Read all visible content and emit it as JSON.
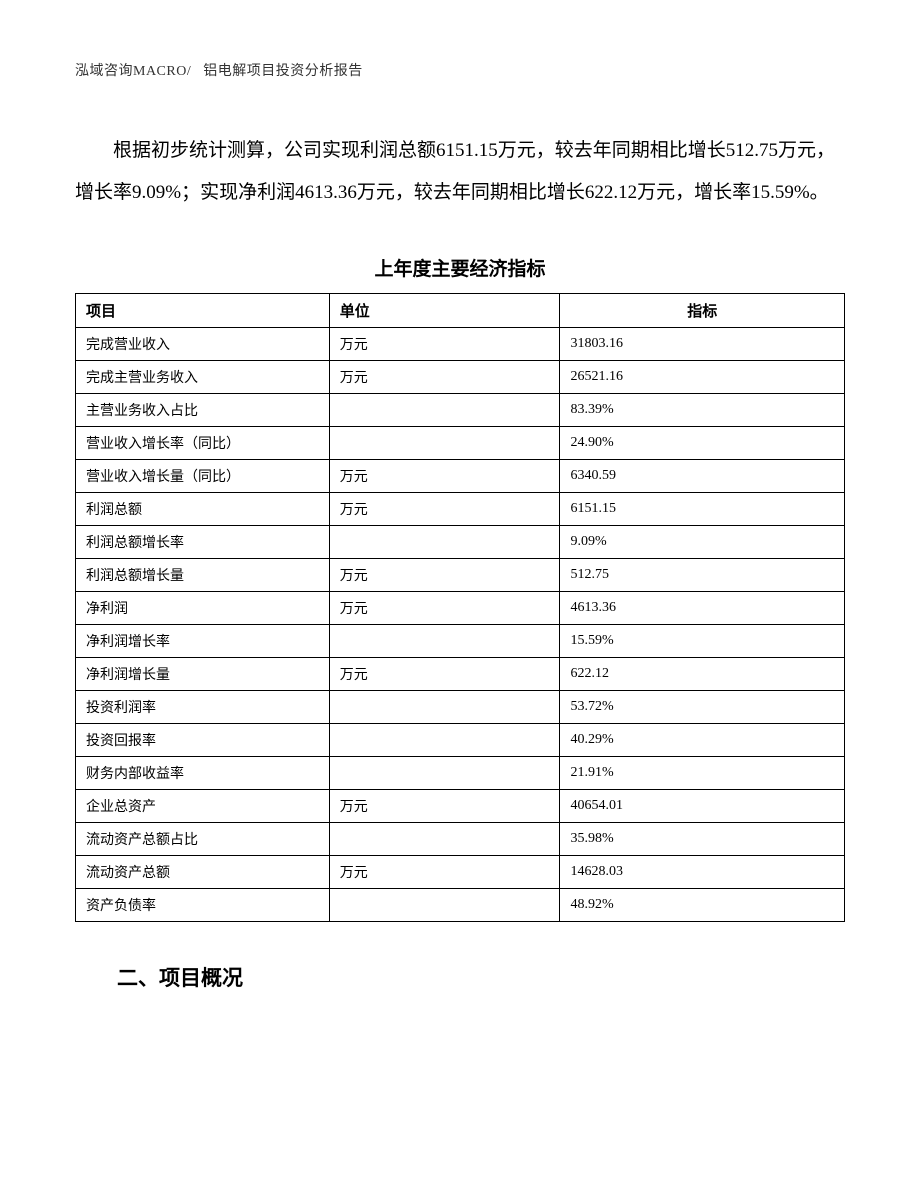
{
  "header": {
    "company": "泓域咨询MACRO/",
    "doc_title": "铝电解项目投资分析报告"
  },
  "paragraph": "根据初步统计测算，公司实现利润总额6151.15万元，较去年同期相比增长512.75万元，增长率9.09%；实现净利润4613.36万元，较去年同期相比增长622.12万元，增长率15.59%。",
  "table": {
    "title": "上年度主要经济指标",
    "columns": [
      "项目",
      "单位",
      "指标"
    ],
    "rows": [
      {
        "item": "完成营业收入",
        "unit": "万元",
        "value": "31803.16"
      },
      {
        "item": "完成主营业务收入",
        "unit": "万元",
        "value": "26521.16"
      },
      {
        "item": "主营业务收入占比",
        "unit": "",
        "value": "83.39%"
      },
      {
        "item": "营业收入增长率（同比）",
        "unit": "",
        "value": "24.90%"
      },
      {
        "item": "营业收入增长量（同比）",
        "unit": "万元",
        "value": "6340.59"
      },
      {
        "item": "利润总额",
        "unit": "万元",
        "value": "6151.15"
      },
      {
        "item": "利润总额增长率",
        "unit": "",
        "value": "9.09%"
      },
      {
        "item": "利润总额增长量",
        "unit": "万元",
        "value": "512.75"
      },
      {
        "item": "净利润",
        "unit": "万元",
        "value": "4613.36"
      },
      {
        "item": "净利润增长率",
        "unit": "",
        "value": "15.59%"
      },
      {
        "item": "净利润增长量",
        "unit": "万元",
        "value": "622.12"
      },
      {
        "item": "投资利润率",
        "unit": "",
        "value": "53.72%"
      },
      {
        "item": "投资回报率",
        "unit": "",
        "value": "40.29%"
      },
      {
        "item": "财务内部收益率",
        "unit": "",
        "value": "21.91%"
      },
      {
        "item": "企业总资产",
        "unit": "万元",
        "value": "40654.01"
      },
      {
        "item": "流动资产总额占比",
        "unit": "",
        "value": "35.98%"
      },
      {
        "item": "流动资产总额",
        "unit": "万元",
        "value": "14628.03"
      },
      {
        "item": "资产负债率",
        "unit": "",
        "value": "48.92%"
      }
    ]
  },
  "section_heading": "二、项目概况",
  "styling": {
    "background_color": "#ffffff",
    "text_color": "#000000",
    "header_color": "#333333",
    "border_color": "#000000",
    "body_fontsize": 19,
    "table_header_fontsize": 15,
    "table_cell_fontsize": 14,
    "heading_fontsize": 21,
    "font_family": "SimSun"
  }
}
